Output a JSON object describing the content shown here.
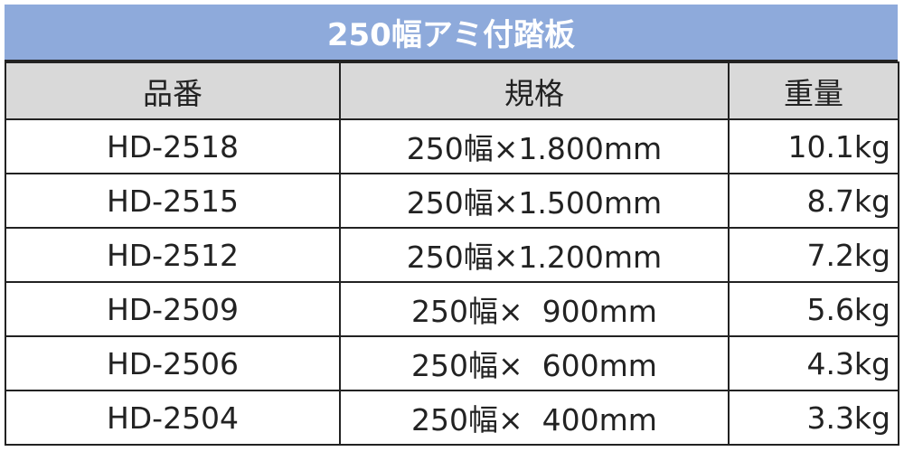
{
  "title": "250幅アミ付踏板",
  "table": {
    "header": [
      "品番",
      "規格",
      "重量"
    ],
    "rows": [
      [
        "HD-2518",
        "250幅×1.800mm",
        "10.1kg"
      ],
      [
        "HD-2515",
        "250幅×1.500mm",
        "8.7kg"
      ],
      [
        "HD-2512",
        "250幅×1.200mm",
        "7.2kg"
      ],
      [
        "HD-2509",
        "250幅×  900mm",
        "5.6kg"
      ],
      [
        "HD-2506",
        "250幅×  600mm",
        "4.3kg"
      ],
      [
        "HD-2504",
        "250幅×  400mm",
        "3.3kg"
      ]
    ]
  }
}
